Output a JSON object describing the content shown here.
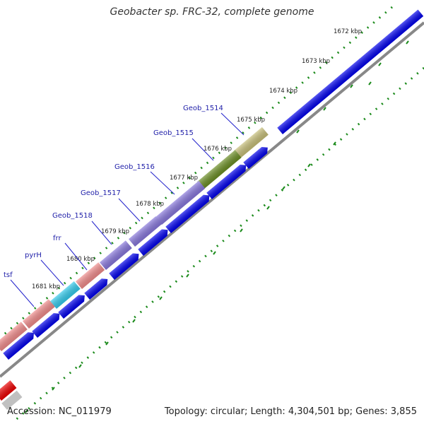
{
  "title": "Geobacter sp. FRC-32, complete genome",
  "accession_text": "Accession: NC_011979",
  "topology_text": "Topology: circular; Length: 4,304,501 bp; Genes: 3,855",
  "colors": {
    "forward_feature": "#0000ee",
    "backbone": "#888888",
    "ticks": "#1a8a1a",
    "label_line": "#2222cc",
    "label_text": "#2222aa",
    "kbp_text": "#222222"
  },
  "kbp_ticks": [
    "1672 kbp",
    "1673 kbp",
    "1674 kbp",
    "1675 kbp",
    "1676 kbp",
    "1677 kbp",
    "1678 kbp",
    "1679 kbp",
    "1680 kbp",
    "1681 kbp"
  ],
  "gene_labels": [
    {
      "name": "Geob_1514",
      "color": "#c8c07a"
    },
    {
      "name": "Geob_1515",
      "color": "#6b8e23"
    },
    {
      "name": "Geob_1516",
      "color": "#8877dd"
    },
    {
      "name": "Geob_1517",
      "color": "#8877dd"
    },
    {
      "name": "Geob_1518",
      "color": "#8877dd"
    },
    {
      "name": "frr",
      "color": "#f28c8c"
    },
    {
      "name": "pyrH",
      "color": "#33ccee"
    },
    {
      "name": "tsf",
      "color": "#f28c8c"
    }
  ]
}
